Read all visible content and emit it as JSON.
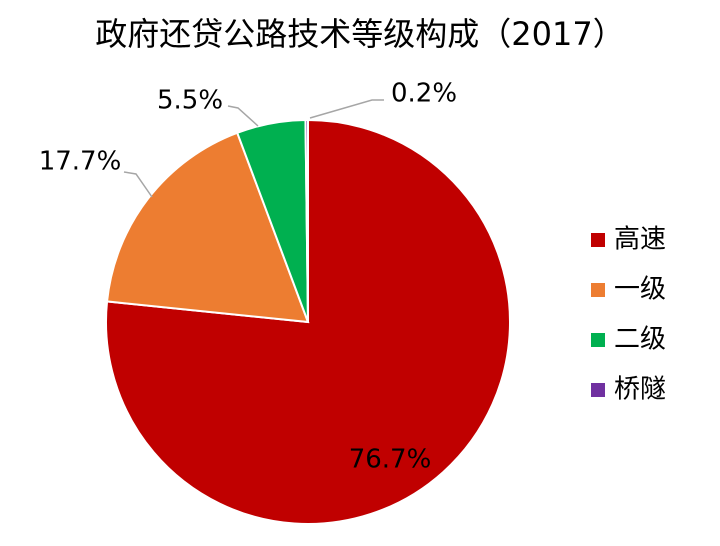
{
  "chart_data": {
    "type": "pie",
    "title": "政府还贷公路技术等级构成（2017）",
    "categories": [
      "高速",
      "一级",
      "二级",
      "桥隧"
    ],
    "values": [
      76.7,
      17.7,
      5.5,
      0.2
    ],
    "value_labels": [
      "76.7%",
      "17.7%",
      "5.5%",
      "0.2%"
    ],
    "colors": [
      "#c00000",
      "#ed7d31",
      "#00b050",
      "#7030a0"
    ],
    "legend": "right"
  }
}
